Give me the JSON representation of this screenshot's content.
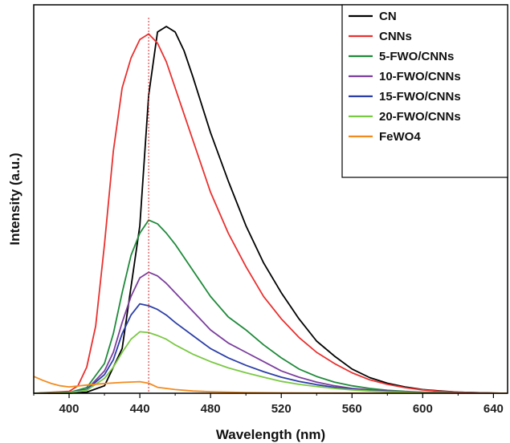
{
  "chart_data": {
    "type": "line",
    "xlabel": "Wavelength (nm)",
    "ylabel": "Intensity (a.u.)",
    "xlim": [
      380,
      648
    ],
    "ylim": [
      0,
      100
    ],
    "xticks": [
      400,
      440,
      480,
      520,
      560,
      600,
      640
    ],
    "yticks_shown": false,
    "legend_position": "top-right",
    "reference_line": {
      "x": 445,
      "style": "dotted",
      "color": "#d62728"
    },
    "series": [
      {
        "name": "CN",
        "color": "#000000",
        "x": [
          380,
          400,
          410,
          420,
          430,
          440,
          445,
          450,
          455,
          460,
          465,
          470,
          480,
          490,
          500,
          510,
          520,
          530,
          540,
          550,
          560,
          570,
          580,
          590,
          600,
          610,
          620,
          630,
          640,
          648
        ],
        "y": [
          0,
          0,
          0.3,
          2,
          12,
          45,
          80,
          97,
          98.5,
          97,
          92,
          85,
          70,
          57,
          45,
          35,
          27,
          20,
          14,
          10,
          6.5,
          4.2,
          2.7,
          1.7,
          1,
          0.6,
          0.3,
          0.15,
          0.05,
          0
        ]
      },
      {
        "name": "CNNs",
        "color": "#e8312f",
        "x": [
          380,
          400,
          405,
          410,
          415,
          420,
          425,
          430,
          435,
          440,
          445,
          450,
          455,
          460,
          470,
          480,
          490,
          500,
          510,
          520,
          530,
          540,
          550,
          560,
          570,
          580,
          590,
          600,
          610,
          620,
          630,
          640,
          648
        ],
        "y": [
          0,
          0.5,
          2,
          7,
          18,
          40,
          65,
          82,
          90,
          95,
          96.5,
          94,
          89,
          82,
          68,
          54,
          43,
          34,
          26,
          20,
          15,
          11,
          8,
          5.5,
          3.6,
          2.4,
          1.5,
          0.9,
          0.5,
          0.3,
          0.15,
          0.05,
          0
        ]
      },
      {
        "name": "5-FWO/CNNs",
        "color": "#1f8a3a",
        "x": [
          380,
          400,
          410,
          420,
          425,
          430,
          435,
          440,
          445,
          450,
          455,
          460,
          470,
          480,
          490,
          500,
          510,
          520,
          530,
          540,
          550,
          560,
          570,
          580,
          590,
          600,
          610,
          620,
          640,
          648
        ],
        "y": [
          0,
          0.2,
          1.5,
          8,
          16,
          27,
          37,
          43,
          46.5,
          45.5,
          43,
          40,
          33,
          26,
          20.5,
          17,
          13,
          9.5,
          6.5,
          4.5,
          3,
          2,
          1.3,
          0.8,
          0.5,
          0.3,
          0.2,
          0.1,
          0.02,
          0
        ]
      },
      {
        "name": "10-FWO/CNNs",
        "color": "#7b3f9e",
        "x": [
          380,
          400,
          410,
          420,
          425,
          430,
          435,
          440,
          445,
          450,
          455,
          460,
          470,
          480,
          490,
          500,
          510,
          520,
          530,
          540,
          550,
          560,
          570,
          580,
          590,
          600,
          620,
          640,
          648
        ],
        "y": [
          0,
          0.2,
          1,
          6,
          11,
          19,
          26,
          31,
          32.5,
          31.5,
          29.5,
          27,
          22,
          17,
          13.5,
          11,
          8.5,
          6,
          4.3,
          3,
          2,
          1.3,
          0.9,
          0.6,
          0.4,
          0.25,
          0.1,
          0.02,
          0
        ]
      },
      {
        "name": "15-FWO/CNNs",
        "color": "#2c3fa8",
        "x": [
          380,
          400,
          410,
          420,
          425,
          430,
          435,
          440,
          445,
          450,
          455,
          460,
          470,
          480,
          490,
          500,
          510,
          520,
          530,
          540,
          550,
          560,
          570,
          580,
          590,
          600,
          620,
          640,
          648
        ],
        "y": [
          0,
          0.2,
          1,
          5,
          9,
          16,
          21,
          24,
          23.5,
          22.5,
          21,
          19,
          15.5,
          12,
          9.5,
          7.5,
          5.8,
          4.3,
          3.2,
          2.3,
          1.6,
          1.1,
          0.7,
          0.5,
          0.3,
          0.2,
          0.08,
          0.02,
          0
        ]
      },
      {
        "name": "20-FWO/CNNs",
        "color": "#7ac943",
        "x": [
          380,
          400,
          410,
          420,
          425,
          430,
          435,
          440,
          445,
          450,
          455,
          460,
          470,
          480,
          490,
          500,
          510,
          520,
          530,
          540,
          550,
          560,
          570,
          580,
          590,
          600,
          620,
          640,
          648
        ],
        "y": [
          0,
          0.2,
          0.8,
          4,
          7,
          11,
          14.5,
          16.5,
          16.3,
          15.5,
          14.5,
          13,
          10.5,
          8.5,
          6.8,
          5.5,
          4.3,
          3.2,
          2.4,
          1.8,
          1.3,
          0.9,
          0.6,
          0.4,
          0.25,
          0.15,
          0.05,
          0.01,
          0
        ]
      },
      {
        "name": "FeWO4",
        "color": "#f28b1e",
        "x": [
          380,
          385,
          390,
          395,
          400,
          410,
          420,
          430,
          440,
          445,
          450,
          460,
          470,
          480,
          500,
          520,
          560,
          600,
          648
        ],
        "y": [
          4.5,
          3.5,
          2.6,
          2,
          1.7,
          2.2,
          2.6,
          2.9,
          3.1,
          2.7,
          1.6,
          1,
          0.6,
          0.4,
          0.2,
          0.1,
          0.05,
          0.02,
          0
        ]
      }
    ]
  }
}
